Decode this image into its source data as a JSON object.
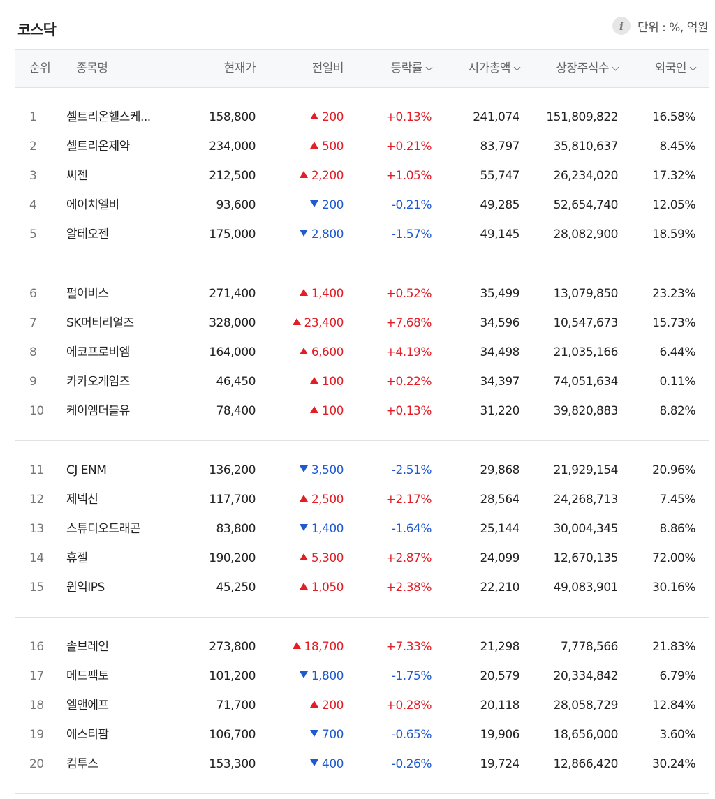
{
  "header": {
    "title": "코스닥",
    "info_icon": "i",
    "unit_label": "단위 : %, 억원"
  },
  "table": {
    "columns": [
      "순위",
      "종목명",
      "현재가",
      "전일비",
      "등락률",
      "시가총액",
      "상장주식수",
      "외국인"
    ],
    "sortable_columns": [
      "등락률",
      "시가총액",
      "상장주식수",
      "외국인"
    ],
    "colors": {
      "up": "#e21e26",
      "down": "#1f5ad1"
    },
    "groups": [
      {
        "rows": [
          {
            "rank": "1",
            "name": "셀트리온헬스케...",
            "price": "158,800",
            "dir": "up",
            "change": "200",
            "rate": "+0.13%",
            "cap": "241,074",
            "shares": "151,809,822",
            "foreign": "16.58%"
          },
          {
            "rank": "2",
            "name": "셀트리온제약",
            "price": "234,000",
            "dir": "up",
            "change": "500",
            "rate": "+0.21%",
            "cap": "83,797",
            "shares": "35,810,637",
            "foreign": "8.45%"
          },
          {
            "rank": "3",
            "name": "씨젠",
            "price": "212,500",
            "dir": "up",
            "change": "2,200",
            "rate": "+1.05%",
            "cap": "55,747",
            "shares": "26,234,020",
            "foreign": "17.32%"
          },
          {
            "rank": "4",
            "name": "에이치엘비",
            "price": "93,600",
            "dir": "down",
            "change": "200",
            "rate": "-0.21%",
            "cap": "49,285",
            "shares": "52,654,740",
            "foreign": "12.05%"
          },
          {
            "rank": "5",
            "name": "알테오젠",
            "price": "175,000",
            "dir": "down",
            "change": "2,800",
            "rate": "-1.57%",
            "cap": "49,145",
            "shares": "28,082,900",
            "foreign": "18.59%"
          }
        ]
      },
      {
        "rows": [
          {
            "rank": "6",
            "name": "펄어비스",
            "price": "271,400",
            "dir": "up",
            "change": "1,400",
            "rate": "+0.52%",
            "cap": "35,499",
            "shares": "13,079,850",
            "foreign": "23.23%"
          },
          {
            "rank": "7",
            "name": "SK머티리얼즈",
            "price": "328,000",
            "dir": "up",
            "change": "23,400",
            "rate": "+7.68%",
            "cap": "34,596",
            "shares": "10,547,673",
            "foreign": "15.73%"
          },
          {
            "rank": "8",
            "name": "에코프로비엠",
            "price": "164,000",
            "dir": "up",
            "change": "6,600",
            "rate": "+4.19%",
            "cap": "34,498",
            "shares": "21,035,166",
            "foreign": "6.44%"
          },
          {
            "rank": "9",
            "name": "카카오게임즈",
            "price": "46,450",
            "dir": "up",
            "change": "100",
            "rate": "+0.22%",
            "cap": "34,397",
            "shares": "74,051,634",
            "foreign": "0.11%"
          },
          {
            "rank": "10",
            "name": "케이엠더블유",
            "price": "78,400",
            "dir": "up",
            "change": "100",
            "rate": "+0.13%",
            "cap": "31,220",
            "shares": "39,820,883",
            "foreign": "8.82%"
          }
        ]
      },
      {
        "rows": [
          {
            "rank": "11",
            "name": "CJ ENM",
            "price": "136,200",
            "dir": "down",
            "change": "3,500",
            "rate": "-2.51%",
            "cap": "29,868",
            "shares": "21,929,154",
            "foreign": "20.96%"
          },
          {
            "rank": "12",
            "name": "제넥신",
            "price": "117,700",
            "dir": "up",
            "change": "2,500",
            "rate": "+2.17%",
            "cap": "28,564",
            "shares": "24,268,713",
            "foreign": "7.45%"
          },
          {
            "rank": "13",
            "name": "스튜디오드래곤",
            "price": "83,800",
            "dir": "down",
            "change": "1,400",
            "rate": "-1.64%",
            "cap": "25,144",
            "shares": "30,004,345",
            "foreign": "8.86%"
          },
          {
            "rank": "14",
            "name": "휴젤",
            "price": "190,200",
            "dir": "up",
            "change": "5,300",
            "rate": "+2.87%",
            "cap": "24,099",
            "shares": "12,670,135",
            "foreign": "72.00%"
          },
          {
            "rank": "15",
            "name": "원익IPS",
            "price": "45,250",
            "dir": "up",
            "change": "1,050",
            "rate": "+2.38%",
            "cap": "22,210",
            "shares": "49,083,901",
            "foreign": "30.16%"
          }
        ]
      },
      {
        "rows": [
          {
            "rank": "16",
            "name": "솔브레인",
            "price": "273,800",
            "dir": "up",
            "change": "18,700",
            "rate": "+7.33%",
            "cap": "21,298",
            "shares": "7,778,566",
            "foreign": "21.83%"
          },
          {
            "rank": "17",
            "name": "메드팩토",
            "price": "101,200",
            "dir": "down",
            "change": "1,800",
            "rate": "-1.75%",
            "cap": "20,579",
            "shares": "20,334,842",
            "foreign": "6.79%"
          },
          {
            "rank": "18",
            "name": "엘앤에프",
            "price": "71,700",
            "dir": "up",
            "change": "200",
            "rate": "+0.28%",
            "cap": "20,118",
            "shares": "28,058,729",
            "foreign": "12.84%"
          },
          {
            "rank": "19",
            "name": "에스티팜",
            "price": "106,700",
            "dir": "down",
            "change": "700",
            "rate": "-0.65%",
            "cap": "19,906",
            "shares": "18,656,000",
            "foreign": "3.60%"
          },
          {
            "rank": "20",
            "name": "컴투스",
            "price": "153,300",
            "dir": "down",
            "change": "400",
            "rate": "-0.26%",
            "cap": "19,724",
            "shares": "12,866,420",
            "foreign": "30.24%"
          }
        ]
      }
    ]
  }
}
